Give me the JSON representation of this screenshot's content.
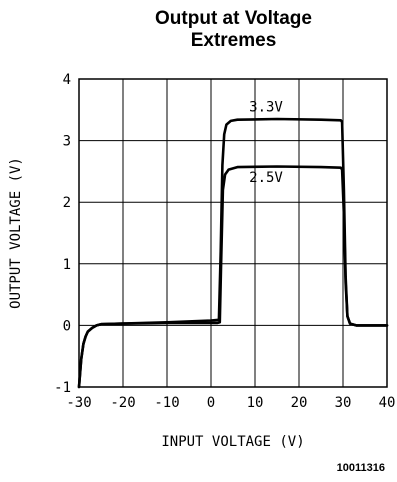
{
  "chart_data": {
    "type": "line",
    "title": [
      "Output at Voltage",
      "Extremes"
    ],
    "xlabel": "INPUT VOLTAGE (V)",
    "ylabel": "OUTPUT VOLTAGE (V)",
    "xlim": [
      -30,
      40
    ],
    "ylim": [
      -1,
      4
    ],
    "xticks": [
      -30,
      -20,
      -10,
      0,
      10,
      20,
      30,
      40
    ],
    "yticks": [
      -1,
      0,
      1,
      2,
      3,
      4
    ],
    "x_tick_labels": [
      "-30",
      "-20",
      "-10",
      "0",
      "10",
      "20",
      "30",
      "40"
    ],
    "y_tick_labels": [
      "-1",
      "0",
      "1",
      "2",
      "3",
      "4"
    ],
    "grid": true,
    "series": [
      {
        "name": "3.3V",
        "points": [
          [
            -30,
            -1.0
          ],
          [
            -29.5,
            -0.55
          ],
          [
            -29,
            -0.3
          ],
          [
            -28.5,
            -0.18
          ],
          [
            -28,
            -0.1
          ],
          [
            -27,
            -0.04
          ],
          [
            -26,
            0.0
          ],
          [
            -25,
            0.02
          ],
          [
            -20,
            0.03
          ],
          [
            -10,
            0.05
          ],
          [
            0,
            0.08
          ],
          [
            1.5,
            0.09
          ],
          [
            1.8,
            0.09
          ],
          [
            2.2,
            1.2
          ],
          [
            2.6,
            2.6
          ],
          [
            3.0,
            3.1
          ],
          [
            3.5,
            3.26
          ],
          [
            4.5,
            3.32
          ],
          [
            6,
            3.34
          ],
          [
            15,
            3.35
          ],
          [
            25,
            3.34
          ],
          [
            29.5,
            3.33
          ],
          [
            29.8,
            3.3
          ],
          [
            30.2,
            2.2
          ],
          [
            30.6,
            0.8
          ],
          [
            31,
            0.15
          ],
          [
            31.6,
            0.03
          ],
          [
            33,
            0.0
          ],
          [
            40,
            0.0
          ]
        ]
      },
      {
        "name": "2.5V",
        "points": [
          [
            -30,
            -1.0
          ],
          [
            -29.5,
            -0.55
          ],
          [
            -29,
            -0.3
          ],
          [
            -28.5,
            -0.18
          ],
          [
            -28,
            -0.1
          ],
          [
            -27,
            -0.04
          ],
          [
            -26,
            0.0
          ],
          [
            -25,
            0.02
          ],
          [
            -20,
            0.03
          ],
          [
            -10,
            0.04
          ],
          [
            0,
            0.04
          ],
          [
            1.5,
            0.04
          ],
          [
            2.0,
            0.05
          ],
          [
            2.3,
            1.0
          ],
          [
            2.7,
            2.2
          ],
          [
            3.2,
            2.45
          ],
          [
            4,
            2.53
          ],
          [
            6,
            2.57
          ],
          [
            15,
            2.58
          ],
          [
            25,
            2.57
          ],
          [
            29.5,
            2.56
          ],
          [
            29.8,
            2.53
          ],
          [
            30.2,
            1.8
          ],
          [
            30.6,
            0.7
          ],
          [
            31,
            0.15
          ],
          [
            31.6,
            0.03
          ],
          [
            33,
            0.0
          ],
          [
            40,
            0.0
          ]
        ]
      }
    ],
    "annotations": [
      {
        "text": "3.3V",
        "x": 12.5,
        "y": 3.47
      },
      {
        "text": "2.5V",
        "x": 12.5,
        "y": 2.33
      }
    ]
  },
  "figure_id": "10011316"
}
